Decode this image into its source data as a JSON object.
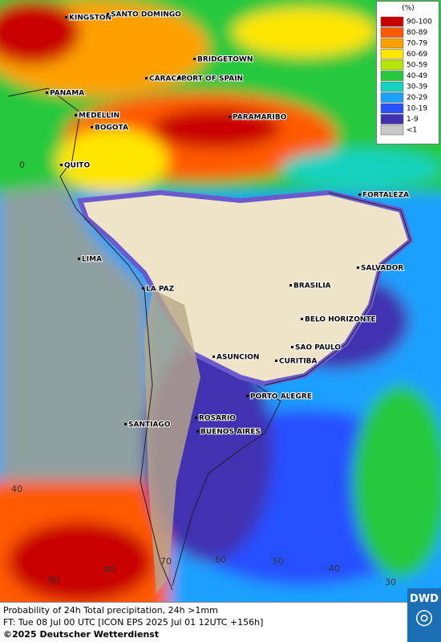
{
  "legend": {
    "title": "(%)",
    "items": [
      {
        "label": "90-100",
        "color": "#c80000"
      },
      {
        "label": "80-89",
        "color": "#ff5a00"
      },
      {
        "label": "70-79",
        "color": "#ffa000"
      },
      {
        "label": "60-69",
        "color": "#ffe600"
      },
      {
        "label": "50-59",
        "color": "#b4e600"
      },
      {
        "label": "40-49",
        "color": "#28c83c"
      },
      {
        "label": "30-39",
        "color": "#14d2be"
      },
      {
        "label": "20-29",
        "color": "#1ea0ff"
      },
      {
        "label": "10-19",
        "color": "#2850ff"
      },
      {
        "label": "1-9",
        "color": "#4030b0"
      },
      {
        "label": "<1",
        "color": "#c8c8c8"
      }
    ]
  },
  "cities": [
    "KINGSTON",
    "SANTO DOMINGO",
    "BRIDGETOWN",
    "CARACAS",
    "PORT OF SPAIN",
    "PANAMA",
    "MEDELLIN",
    "BOGOTA",
    "PARAMARIBO",
    "QUITO",
    "FORTALEZA",
    "LIMA",
    "SALVADOR",
    "LA PAZ",
    "BRASILIA",
    "BELO HORIZONTE",
    "ASUNCION",
    "SAO PAULO",
    "CURITIBA",
    "PORTO ALEGRE",
    "SANTIAGO",
    "ROSARIO",
    "BUENOS AIRES"
  ],
  "grid_labels": [
    0,
    40,
    90,
    80,
    70,
    60,
    50,
    40,
    30
  ],
  "footer": {
    "line1": "Probability of 24h Total precipitation, 24h >1mm",
    "line2": "FT: Tue 08 Jul 00 UTC [ICON EPS 2025 Jul 01 12UTC +156h]",
    "copyright": "©2025 Deutscher Wetterdienst",
    "logo": "DWD"
  }
}
